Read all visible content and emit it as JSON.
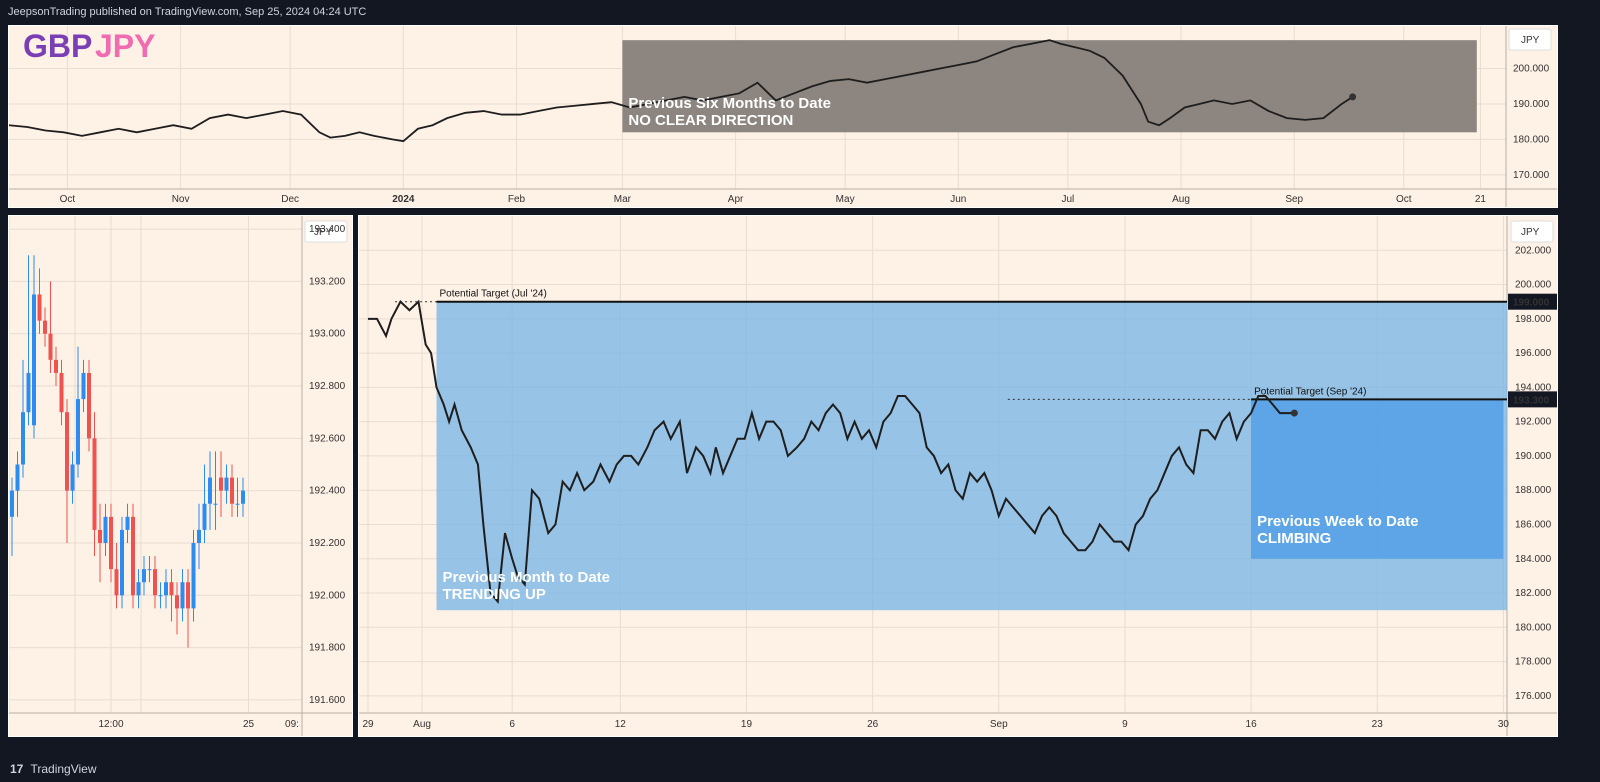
{
  "header": {
    "publisher_text": "JeepsonTrading published on TradingView.com, Sep 25, 2024 04:24 UTC"
  },
  "footer": {
    "brand": "TradingView",
    "logo_glyph": "17"
  },
  "colors": {
    "background": "#fef1e6",
    "line": "#1e1e1e",
    "gray_box": "#8c8580",
    "blue_box": "#6fb1e6",
    "blue_box_dark": "#4a9be6",
    "candle_up": "#2d8cf0",
    "candle_down": "#ef5350"
  },
  "chart_data": [
    {
      "id": "top",
      "type": "line",
      "title_parts": [
        "GBP",
        "JPY"
      ],
      "currency_label": "JPY",
      "y_ticks": [
        "200.000",
        "190.000",
        "180.000",
        "170.000"
      ],
      "y_tick_values": [
        200,
        190,
        180,
        170
      ],
      "ylim": [
        166,
        212
      ],
      "x_tick_labels": [
        "Oct",
        "Nov",
        "Dec",
        "2024",
        "Feb",
        "Mar",
        "Apr",
        "May",
        "Jun",
        "Jul",
        "Aug",
        "Sep",
        "Oct",
        "21"
      ],
      "x_tick_days": [
        16,
        47,
        77,
        108,
        139,
        168,
        199,
        229,
        260,
        290,
        321,
        352,
        382,
        403
      ],
      "xlim": [
        0,
        410
      ],
      "annotation": {
        "lines": [
          "Previous Six Months to Date",
          "NO CLEAR DIRECTION"
        ],
        "range_x": [
          168,
          402
        ],
        "range_y": [
          182,
          208
        ]
      },
      "series": [
        {
          "x": [
            0,
            5,
            10,
            15,
            20,
            25,
            30,
            35,
            40,
            45,
            50,
            55,
            60,
            65,
            70,
            75,
            80,
            85,
            88,
            92,
            96,
            100,
            105,
            108,
            112,
            116,
            120,
            125,
            130,
            135,
            140,
            145,
            150,
            155,
            160,
            165,
            170,
            175,
            180,
            185,
            190,
            195,
            200,
            205,
            210,
            215,
            220,
            225,
            230,
            235,
            240,
            245,
            250,
            255,
            260,
            265,
            270,
            275,
            280,
            285,
            288,
            292,
            296,
            300,
            305,
            310,
            312,
            315,
            318,
            322,
            326,
            330,
            335,
            340,
            345,
            350,
            355,
            360,
            365,
            368
          ],
          "values": [
            184,
            183.5,
            182.5,
            182,
            181,
            182,
            183,
            182,
            183,
            184,
            183,
            186,
            187,
            186,
            187,
            188,
            187,
            182,
            180.5,
            181,
            182,
            181,
            180,
            179.5,
            183,
            184,
            186,
            187.5,
            188,
            187,
            187,
            188,
            189,
            189.5,
            190,
            190.5,
            189,
            190,
            191,
            192,
            191,
            192,
            193,
            196,
            191,
            193,
            195,
            196.5,
            197,
            196,
            197,
            198,
            199,
            200,
            201,
            202,
            204,
            206,
            207,
            208,
            207,
            206,
            205,
            203,
            198,
            190,
            185,
            184,
            186,
            189,
            190,
            191,
            190,
            191,
            188,
            186,
            185.5,
            186,
            190,
            192
          ]
        }
      ]
    },
    {
      "id": "bottom_left",
      "type": "candlestick",
      "currency_label": "JPY",
      "y_ticks": [
        "193.400",
        "193.200",
        "193.000",
        "192.800",
        "192.600",
        "192.400",
        "192.200",
        "192.000",
        "191.800",
        "191.600"
      ],
      "y_tick_values": [
        193.4,
        193.2,
        193.0,
        192.8,
        192.6,
        192.4,
        192.2,
        192.0,
        191.8,
        191.6
      ],
      "ylim": [
        191.55,
        193.45
      ],
      "x_tick_labels": [
        "12:00",
        "25",
        "09:"
      ],
      "x_tick_indices": [
        18,
        43,
        62
      ],
      "candles": {
        "open": [
          192.3,
          192.4,
          192.5,
          192.7,
          192.65,
          193.15,
          193.05,
          193.0,
          192.9,
          192.85,
          192.7,
          192.4,
          192.5,
          192.75,
          192.85,
          192.6,
          192.25,
          192.2,
          192.3,
          192.1,
          192.0,
          192.25,
          192.3,
          192.0,
          192.05,
          192.1,
          192.1,
          192.0,
          192.0,
          192.05,
          192.0,
          191.95,
          192.05,
          191.95,
          192.2,
          192.25,
          192.35,
          192.35,
          192.45,
          192.4,
          192.45,
          192.35,
          192.35
        ],
        "close": [
          192.4,
          192.5,
          192.7,
          192.85,
          193.15,
          193.05,
          193.0,
          192.9,
          192.85,
          192.7,
          192.4,
          192.5,
          192.75,
          192.85,
          192.6,
          192.25,
          192.2,
          192.3,
          192.1,
          192.0,
          192.25,
          192.3,
          192.0,
          192.05,
          192.1,
          192.1,
          192.0,
          192.0,
          192.05,
          192.0,
          191.95,
          192.05,
          191.95,
          192.2,
          192.25,
          192.35,
          192.45,
          192.35,
          192.4,
          192.45,
          192.35,
          192.35,
          192.4
        ],
        "high": [
          192.45,
          192.55,
          192.9,
          193.3,
          193.3,
          193.25,
          193.1,
          193.2,
          192.95,
          192.9,
          192.75,
          192.55,
          192.95,
          192.9,
          192.9,
          192.7,
          192.35,
          192.35,
          192.35,
          192.2,
          192.3,
          192.35,
          192.35,
          192.1,
          192.15,
          192.15,
          192.15,
          192.05,
          192.1,
          192.1,
          192.05,
          192.1,
          192.1,
          192.25,
          192.35,
          192.5,
          192.55,
          192.55,
          192.55,
          192.5,
          192.5,
          192.45,
          192.45
        ],
        "low": [
          192.15,
          192.3,
          192.45,
          192.65,
          192.6,
          193.0,
          192.95,
          192.85,
          192.8,
          192.65,
          192.2,
          192.35,
          192.45,
          192.7,
          192.55,
          192.15,
          192.05,
          192.15,
          192.05,
          191.95,
          191.95,
          192.2,
          191.95,
          191.95,
          192.0,
          192.05,
          191.95,
          191.95,
          191.95,
          191.9,
          191.85,
          191.9,
          191.8,
          191.9,
          192.1,
          192.2,
          192.25,
          192.25,
          192.3,
          192.35,
          192.3,
          192.3,
          192.3
        ]
      }
    },
    {
      "id": "bottom_right",
      "type": "line",
      "currency_label": "JPY",
      "y_ticks": [
        "202.000",
        "200.000",
        "198.000",
        "196.000",
        "194.000",
        "192.000",
        "190.000",
        "188.000",
        "186.000",
        "184.000",
        "182.000",
        "180.000",
        "178.000",
        "176.000"
      ],
      "y_tick_values": [
        202,
        200,
        198,
        196,
        194,
        192,
        190,
        188,
        186,
        184,
        182,
        180,
        178,
        176
      ],
      "ylim": [
        175,
        204
      ],
      "x_tick_labels": [
        "29",
        "Aug",
        "6",
        "12",
        "19",
        "26",
        "Sep",
        "9",
        "16",
        "23",
        "30"
      ],
      "x_tick_days": [
        0,
        3,
        8,
        14,
        21,
        28,
        35,
        42,
        49,
        56,
        63
      ],
      "xlim": [
        -0.5,
        63.2
      ],
      "targets": [
        {
          "label": "Potential Target (Jul '24)",
          "value": 199,
          "value_label": "199.000",
          "start_day": 1.5,
          "line_start_day": 3.8
        },
        {
          "label": "Potential Target (Sep '24)",
          "value": 193.3,
          "value_label": "193.300",
          "start_day": 35.5,
          "line_start_day": 49
        }
      ],
      "annotations": [
        {
          "lines": [
            "Previous Month to Date",
            "TRENDING UP"
          ],
          "range_x": [
            3.8,
            63.2
          ],
          "range_y": [
            181,
            199
          ]
        },
        {
          "lines": [
            "Previous Week to Date",
            "CLIMBING"
          ],
          "range_x": [
            49,
            63
          ],
          "range_y": [
            184,
            193.3
          ]
        }
      ],
      "series": [
        {
          "x": [
            0,
            0.5,
            1,
            1.3,
            1.8,
            2.3,
            2.8,
            3.2,
            3.5,
            3.8,
            4.2,
            4.5,
            4.8,
            5.2,
            5.7,
            6.1,
            6.4,
            6.8,
            7.2,
            7.6,
            8,
            8.3,
            8.7,
            9.1,
            9.5,
            10,
            10.4,
            10.8,
            11.2,
            11.6,
            12,
            12.5,
            12.9,
            13.4,
            13.8,
            14.2,
            14.6,
            15,
            15.5,
            15.9,
            16.4,
            16.8,
            17.3,
            17.7,
            18.2,
            18.6,
            19,
            19.3,
            19.7,
            20.1,
            20.5,
            20.9,
            21.3,
            21.7,
            22.1,
            22.5,
            22.9,
            23.3,
            23.8,
            24.2,
            24.6,
            25,
            25.4,
            25.8,
            26.2,
            26.6,
            27,
            27.4,
            27.8,
            28.2,
            28.6,
            29,
            29.4,
            29.8,
            30.2,
            30.6,
            31,
            31.4,
            31.8,
            32.2,
            32.6,
            33,
            33.4,
            33.8,
            34.2,
            34.6,
            35,
            35.4,
            35.8,
            36.2,
            36.6,
            37,
            37.4,
            37.8,
            38.2,
            38.6,
            39,
            39.4,
            39.8,
            40.2,
            40.6,
            41,
            41.4,
            41.8,
            42.2,
            42.6,
            43,
            43.4,
            43.8,
            44.2,
            44.6,
            45,
            45.4,
            45.8,
            46.2,
            46.6,
            47,
            47.4,
            47.8,
            48.2,
            48.6,
            49,
            49.4,
            49.8,
            50.2,
            50.6,
            51,
            51.4,
            51.8,
            52.2,
            52.6,
            53,
            53.4,
            53.8,
            54.2,
            54.6,
            55,
            55.4,
            55.8,
            56.2,
            56.6,
            57,
            57.4,
            57.8,
            58.2,
            58.6
          ],
          "values": [
            198,
            198,
            197,
            198,
            199,
            198.5,
            199,
            196.5,
            196,
            194,
            193,
            192,
            193,
            191.5,
            190.5,
            189.5,
            186,
            182,
            181.5,
            185.5,
            184,
            183,
            182.5,
            188,
            187.5,
            185.5,
            186,
            188.5,
            188,
            189,
            188,
            188.5,
            189.5,
            188.5,
            189.5,
            190,
            190,
            189.5,
            190.5,
            191.5,
            192,
            191,
            192,
            189,
            190.5,
            190,
            189,
            190.5,
            189,
            190,
            191,
            191,
            192.5,
            191,
            192,
            192,
            191.5,
            190,
            190.5,
            191,
            192,
            191.5,
            192.5,
            193,
            192.5,
            191,
            192,
            191,
            191.5,
            190.5,
            192,
            192.5,
            193.5,
            193.5,
            193,
            192.5,
            190.5,
            190,
            189,
            189.5,
            188,
            187.5,
            189,
            188.5,
            189,
            188,
            186.5,
            187.5,
            187,
            186.5,
            186,
            185.5,
            186.5,
            187,
            186.5,
            185.5,
            185,
            184.5,
            184.5,
            185,
            186,
            185.5,
            185,
            185,
            184.5,
            186,
            186.5,
            187.5,
            188,
            189,
            190,
            190.5,
            189.5,
            189,
            191.5,
            191.5,
            191,
            192,
            192.5,
            191,
            192,
            192.5,
            193.5,
            193.5,
            193,
            192.5,
            192.5,
            192.5,
            192.5,
            192.5,
            192.5,
            192.5,
            192.5,
            192.5,
            192.5,
            192.5,
            192.5,
            192.5,
            192.5,
            192.5,
            192.5,
            192.5,
            192.5,
            192.5,
            192.5,
            192.5
          ]
        }
      ]
    }
  ]
}
